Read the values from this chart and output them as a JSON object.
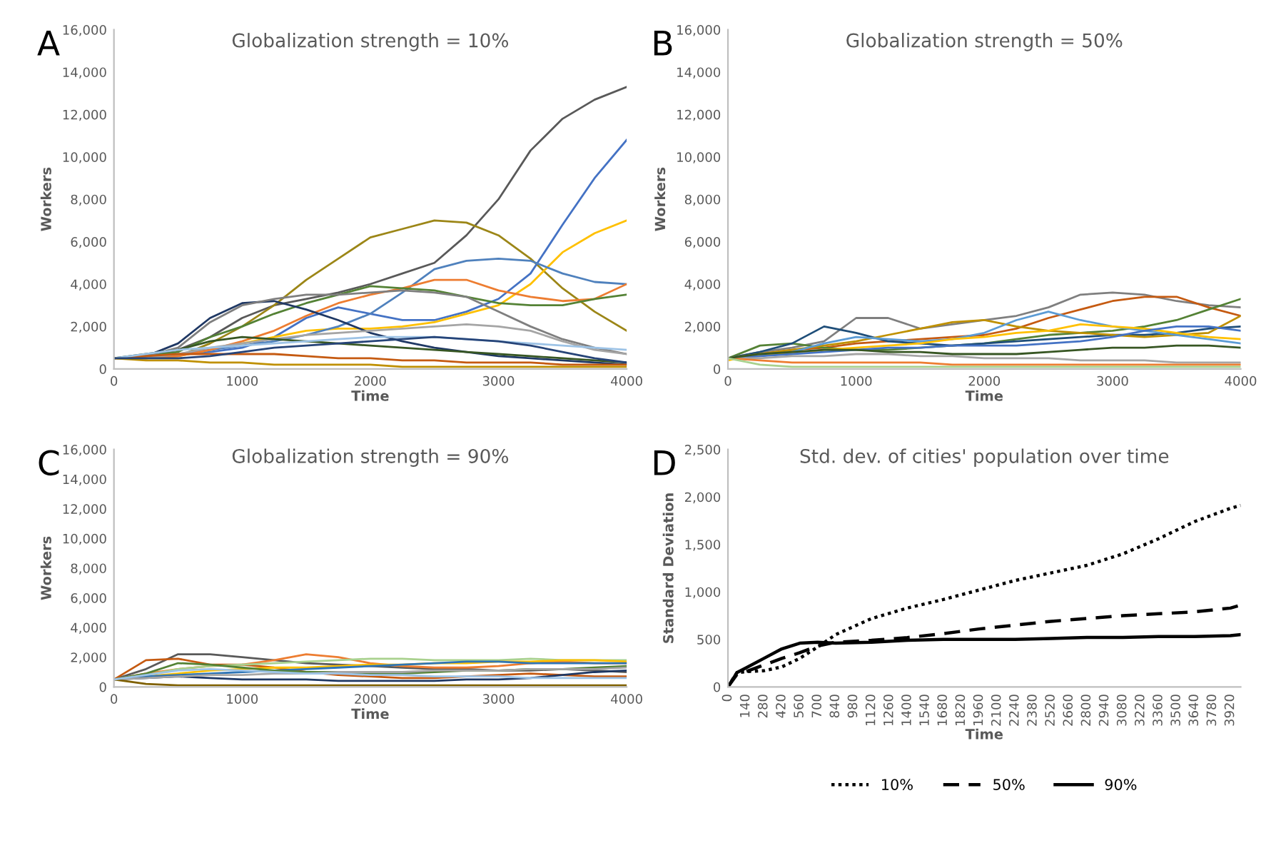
{
  "chart_data": [
    {
      "type": "line",
      "title": "Globalization strength = 10%",
      "xlabel": "Time",
      "ylabel": "Workers",
      "annotations": [
        "A"
      ],
      "x": [
        0,
        250,
        500,
        750,
        1000,
        1250,
        1500,
        1750,
        2000,
        2250,
        2500,
        2750,
        3000,
        3250,
        3500,
        3750,
        4000
      ],
      "xlim": [
        0,
        4000
      ],
      "xticks": [
        0,
        1000,
        2000,
        3000,
        4000
      ],
      "ylim": [
        0,
        16000
      ],
      "yticks": [
        0,
        {
          "value": 2000,
          "label": "2,000"
        },
        {
          "value": 4000,
          "label": "4,000"
        },
        {
          "value": 6000,
          "label": "6,000"
        },
        {
          "value": 8000,
          "label": "8,000"
        },
        {
          "value": 10000,
          "label": "10,000"
        },
        {
          "value": 12000,
          "label": "12,000"
        },
        {
          "value": 14000,
          "label": "14,000"
        },
        {
          "value": 16000,
          "label": "16,000"
        }
      ],
      "series": [
        {
          "color": "#595959",
          "values": [
            500,
            600,
            900,
            1500,
            2400,
            3000,
            3300,
            3600,
            4000,
            4500,
            5000,
            6300,
            8000,
            10300,
            11800,
            12700,
            13300
          ]
        },
        {
          "color": "#9c8617",
          "values": [
            500,
            500,
            600,
            1200,
            2000,
            3000,
            4200,
            5200,
            6200,
            6600,
            7000,
            6900,
            6300,
            5200,
            3800,
            2700,
            1800
          ]
        },
        {
          "color": "#4472c4",
          "values": [
            500,
            600,
            700,
            800,
            1000,
            1500,
            2400,
            2900,
            2600,
            2300,
            2300,
            2700,
            3300,
            4500,
            6800,
            9000,
            10800
          ]
        },
        {
          "color": "#ffc000",
          "values": [
            500,
            500,
            600,
            900,
            1200,
            1500,
            1800,
            1900,
            1900,
            2000,
            2200,
            2600,
            3000,
            4000,
            5500,
            6400,
            7000
          ]
        },
        {
          "color": "#4f81bd",
          "values": [
            500,
            600,
            700,
            900,
            1100,
            1300,
            1600,
            2000,
            2600,
            3600,
            4700,
            5100,
            5200,
            5100,
            4500,
            4100,
            4000
          ]
        },
        {
          "color": "#ed7d31",
          "values": [
            500,
            500,
            600,
            900,
            1300,
            1800,
            2500,
            3100,
            3500,
            3800,
            4200,
            4200,
            3700,
            3400,
            3200,
            3300,
            4000
          ]
        },
        {
          "color": "#548235",
          "values": [
            500,
            600,
            800,
            1500,
            2000,
            2600,
            3100,
            3500,
            3900,
            3800,
            3700,
            3400,
            3100,
            3000,
            3000,
            3300,
            3500
          ]
        },
        {
          "color": "#1f3864",
          "values": [
            500,
            600,
            1200,
            2400,
            3100,
            3200,
            2800,
            2300,
            1700,
            1300,
            1000,
            800,
            600,
            500,
            400,
            300,
            200
          ]
        },
        {
          "color": "#7f7f7f",
          "values": [
            500,
            600,
            1000,
            2200,
            3000,
            3300,
            3500,
            3500,
            3600,
            3700,
            3600,
            3400,
            2700,
            2000,
            1400,
            1000,
            700
          ]
        },
        {
          "color": "#a5a5a5",
          "values": [
            500,
            500,
            700,
            1000,
            1200,
            1400,
            1600,
            1700,
            1800,
            1900,
            2000,
            2100,
            2000,
            1800,
            1300,
            900,
            700
          ]
        },
        {
          "color": "#375623",
          "values": [
            500,
            700,
            900,
            1300,
            1500,
            1400,
            1300,
            1200,
            1100,
            1000,
            900,
            800,
            700,
            600,
            500,
            400,
            300
          ]
        },
        {
          "color": "#c55a11",
          "values": [
            500,
            600,
            700,
            700,
            700,
            700,
            600,
            500,
            500,
            400,
            400,
            300,
            300,
            300,
            200,
            200,
            200
          ]
        },
        {
          "color": "#9dc3e6",
          "values": [
            500,
            700,
            900,
            1000,
            1100,
            1200,
            1300,
            1400,
            1500,
            1500,
            1500,
            1400,
            1300,
            1200,
            1100,
            1000,
            900
          ]
        },
        {
          "color": "#bf9000",
          "values": [
            500,
            400,
            400,
            300,
            300,
            200,
            200,
            200,
            200,
            100,
            100,
            100,
            100,
            100,
            100,
            100,
            100
          ]
        },
        {
          "color": "#264478",
          "values": [
            500,
            500,
            500,
            600,
            800,
            1000,
            1100,
            1200,
            1300,
            1400,
            1500,
            1400,
            1300,
            1100,
            800,
            500,
            300
          ]
        }
      ]
    },
    {
      "type": "line",
      "title": "Globalization strength = 50%",
      "xlabel": "Time",
      "ylabel": "Workers",
      "annotations": [
        "B"
      ],
      "x": [
        0,
        250,
        500,
        750,
        1000,
        1250,
        1500,
        1750,
        2000,
        2250,
        2500,
        2750,
        3000,
        3250,
        3500,
        3750,
        4000
      ],
      "xlim": [
        0,
        4000
      ],
      "xticks": [
        0,
        1000,
        2000,
        3000,
        4000
      ],
      "ylim": [
        0,
        16000
      ],
      "yticks": [
        0,
        {
          "value": 2000,
          "label": "2,000"
        },
        {
          "value": 4000,
          "label": "4,000"
        },
        {
          "value": 6000,
          "label": "6,000"
        },
        {
          "value": 8000,
          "label": "8,000"
        },
        {
          "value": 10000,
          "label": "10,000"
        },
        {
          "value": 12000,
          "label": "12,000"
        },
        {
          "value": 14000,
          "label": "14,000"
        },
        {
          "value": 16000,
          "label": "16,000"
        }
      ],
      "series": [
        {
          "color": "#7f7f7f",
          "values": [
            500,
            800,
            1000,
            1300,
            2400,
            2400,
            1900,
            2100,
            2300,
            2500,
            2900,
            3500,
            3600,
            3500,
            3200,
            3000,
            2900
          ]
        },
        {
          "color": "#c55a11",
          "values": [
            500,
            700,
            900,
            1000,
            1200,
            1300,
            1400,
            1500,
            1600,
            1900,
            2400,
            2800,
            3200,
            3400,
            3400,
            2900,
            2500
          ]
        },
        {
          "color": "#548235",
          "values": [
            500,
            1100,
            1200,
            1000,
            900,
            900,
            1000,
            1100,
            1200,
            1400,
            1600,
            1700,
            1800,
            2000,
            2300,
            2800,
            3300
          ]
        },
        {
          "color": "#1f4e79",
          "values": [
            500,
            800,
            1200,
            2000,
            1700,
            1300,
            1200,
            1100,
            1200,
            1300,
            1400,
            1500,
            1600,
            1600,
            1700,
            1900,
            2000
          ]
        },
        {
          "color": "#bf9000",
          "values": [
            500,
            700,
            900,
            1100,
            1300,
            1600,
            1900,
            2200,
            2300,
            2000,
            1800,
            1700,
            1600,
            1500,
            1600,
            1700,
            2500
          ]
        },
        {
          "color": "#5b9bd5",
          "values": [
            500,
            600,
            800,
            1200,
            1500,
            1400,
            1300,
            1400,
            1700,
            2300,
            2700,
            2300,
            2000,
            1800,
            1600,
            1400,
            1200
          ]
        },
        {
          "color": "#ffc000",
          "values": [
            400,
            700,
            700,
            900,
            1000,
            1100,
            1200,
            1400,
            1500,
            1700,
            1800,
            2100,
            2000,
            1900,
            1700,
            1500,
            1400
          ]
        },
        {
          "color": "#4472c4",
          "values": [
            500,
            600,
            700,
            800,
            900,
            1000,
            1000,
            1100,
            1100,
            1100,
            1200,
            1300,
            1500,
            1800,
            2000,
            2000,
            1800
          ]
        },
        {
          "color": "#a5a5a5",
          "values": [
            500,
            500,
            600,
            600,
            700,
            700,
            600,
            600,
            500,
            500,
            500,
            400,
            400,
            400,
            300,
            300,
            300
          ]
        },
        {
          "color": "#ed7d31",
          "values": [
            500,
            400,
            300,
            300,
            300,
            300,
            300,
            200,
            200,
            200,
            200,
            200,
            200,
            200,
            200,
            200,
            200
          ]
        },
        {
          "color": "#375623",
          "values": [
            500,
            700,
            800,
            900,
            900,
            800,
            800,
            700,
            700,
            700,
            800,
            900,
            1000,
            1000,
            1100,
            1100,
            1000
          ]
        },
        {
          "color": "#a9d18e",
          "values": [
            500,
            200,
            100,
            100,
            100,
            100,
            100,
            100,
            100,
            100,
            100,
            100,
            100,
            100,
            100,
            100,
            100
          ]
        }
      ]
    },
    {
      "type": "line",
      "title": "Globalization strength = 90%",
      "xlabel": "Time",
      "ylabel": "Workers",
      "annotations": [
        "C"
      ],
      "x": [
        0,
        250,
        500,
        750,
        1000,
        1250,
        1500,
        1750,
        2000,
        2250,
        2500,
        2750,
        3000,
        3250,
        3500,
        3750,
        4000
      ],
      "xlim": [
        0,
        4000
      ],
      "xticks": [
        0,
        1000,
        2000,
        3000,
        4000
      ],
      "ylim": [
        0,
        16000
      ],
      "yticks": [
        0,
        {
          "value": 2000,
          "label": "2,000"
        },
        {
          "value": 4000,
          "label": "4,000"
        },
        {
          "value": 6000,
          "label": "6,000"
        },
        {
          "value": 8000,
          "label": "8,000"
        },
        {
          "value": 10000,
          "label": "10,000"
        },
        {
          "value": 12000,
          "label": "12,000"
        },
        {
          "value": 14000,
          "label": "14,000"
        },
        {
          "value": 16000,
          "label": "16,000"
        }
      ],
      "series": [
        {
          "color": "#595959",
          "values": [
            500,
            1200,
            2200,
            2200,
            2000,
            1800,
            1600,
            1500,
            1400,
            1300,
            1200,
            1200,
            1100,
            1100,
            1200,
            1100,
            1000
          ]
        },
        {
          "color": "#ed7d31",
          "values": [
            500,
            900,
            1200,
            1400,
            1500,
            1800,
            2200,
            2000,
            1600,
            1400,
            1300,
            1300,
            1400,
            1600,
            1700,
            1600,
            1600
          ]
        },
        {
          "color": "#c55a11",
          "values": [
            500,
            1800,
            1900,
            1500,
            1500,
            1300,
            1000,
            800,
            700,
            600,
            600,
            700,
            800,
            900,
            800,
            700,
            700
          ]
        },
        {
          "color": "#a9d18e",
          "values": [
            500,
            800,
            1200,
            1400,
            1500,
            1600,
            1700,
            1800,
            1900,
            1900,
            1800,
            1800,
            1800,
            1900,
            1800,
            1800,
            1800
          ]
        },
        {
          "color": "#ffc000",
          "values": [
            500,
            700,
            900,
            1100,
            1200,
            1300,
            1300,
            1400,
            1500,
            1500,
            1600,
            1600,
            1700,
            1700,
            1800,
            1800,
            1700
          ]
        },
        {
          "color": "#2e75b6",
          "values": [
            500,
            700,
            800,
            900,
            1000,
            1100,
            1200,
            1300,
            1400,
            1500,
            1600,
            1700,
            1700,
            1600,
            1600,
            1600,
            1600
          ]
        },
        {
          "color": "#548235",
          "values": [
            500,
            900,
            1600,
            1500,
            1300,
            1100,
            1000,
            1000,
            900,
            900,
            1000,
            1100,
            1100,
            1200,
            1200,
            1300,
            1400
          ]
        },
        {
          "color": "#1f3864",
          "values": [
            500,
            600,
            700,
            600,
            500,
            500,
            500,
            400,
            400,
            400,
            400,
            500,
            500,
            600,
            800,
            1000,
            1100
          ]
        },
        {
          "color": "#a5a5a5",
          "values": [
            500,
            600,
            700,
            800,
            800,
            900,
            900,
            1000,
            1000,
            1000,
            1100,
            1100,
            1100,
            1200,
            1200,
            1200,
            1300
          ]
        },
        {
          "color": "#7f6000",
          "values": [
            500,
            200,
            100,
            100,
            100,
            100,
            100,
            100,
            100,
            100,
            100,
            100,
            100,
            100,
            100,
            100,
            100
          ]
        },
        {
          "color": "#9dc3e6",
          "values": [
            500,
            800,
            1100,
            1200,
            1100,
            1000,
            900,
            900,
            800,
            800,
            700,
            700,
            700,
            600,
            600,
            600,
            600
          ]
        }
      ]
    },
    {
      "type": "line",
      "title": "Std. dev. of cities' population over time",
      "xlabel": "Time",
      "ylabel": "Standard Deviation",
      "annotations": [
        "D"
      ],
      "x": [
        0,
        70,
        140,
        280,
        420,
        560,
        700,
        840,
        1120,
        1400,
        1680,
        1960,
        2240,
        2520,
        2800,
        3080,
        3360,
        3640,
        3920,
        4000
      ],
      "xlim": [
        0,
        4000
      ],
      "xticks": [
        0,
        140,
        280,
        420,
        560,
        700,
        840,
        980,
        1120,
        1260,
        1400,
        1540,
        1680,
        1820,
        1960,
        2100,
        2240,
        2380,
        2520,
        2660,
        2800,
        2940,
        3080,
        3220,
        3360,
        3500,
        3640,
        3780,
        3920
      ],
      "ylim": [
        0,
        2500
      ],
      "yticks": [
        0,
        500,
        {
          "value": 1000,
          "label": "1,000"
        },
        {
          "value": 1500,
          "label": "1,500"
        },
        {
          "value": 2000,
          "label": "2,000"
        },
        {
          "value": 2500,
          "label": "2,500"
        }
      ],
      "legend": "bottom",
      "series": [
        {
          "name": "10%",
          "color": "#000000",
          "line_style": "dotted",
          "values": [
            0,
            150,
            160,
            170,
            210,
            300,
            420,
            550,
            720,
            830,
            920,
            1020,
            1120,
            1200,
            1280,
            1400,
            1560,
            1740,
            1880,
            1910
          ]
        },
        {
          "name": "50%",
          "color": "#000000",
          "line_style": "dashed",
          "values": [
            0,
            130,
            160,
            230,
            300,
            360,
            430,
            470,
            490,
            520,
            560,
            610,
            650,
            690,
            720,
            750,
            770,
            790,
            830,
            860
          ]
        },
        {
          "name": "90%",
          "color": "#000000",
          "line_style": "solid",
          "values": [
            0,
            150,
            200,
            300,
            400,
            460,
            470,
            460,
            470,
            490,
            500,
            500,
            500,
            510,
            520,
            520,
            530,
            530,
            540,
            550
          ]
        }
      ]
    }
  ]
}
